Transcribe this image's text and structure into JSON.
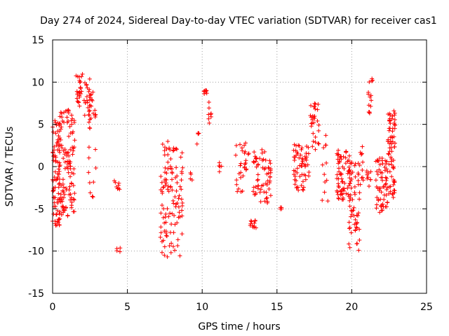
{
  "chart_data": {
    "type": "scatter",
    "title": "Day 274 of 2024, Sidereal Day-to-day VTEC variation (SDTVAR) for receiver cas1",
    "xlabel": "GPS time / hours",
    "ylabel": "SDTVAR / TECUs",
    "xlim": [
      0,
      25
    ],
    "ylim": [
      -15,
      15
    ],
    "xticks": [
      "0",
      "5",
      "10",
      "15",
      "20",
      "25"
    ],
    "yticks": [
      "15",
      "10",
      "5",
      "0",
      "-5",
      "-10",
      "-15"
    ],
    "grid": true,
    "marker": "plus",
    "color": "#ff0000",
    "series": [
      {
        "name": "SDTVAR",
        "clusters": [
          {
            "x": [
              0.0,
              0.5
            ],
            "y": [
              -7,
              6
            ],
            "n": 90
          },
          {
            "x": [
              0.5,
              1.5
            ],
            "y": [
              -6,
              7
            ],
            "n": 110
          },
          {
            "x": [
              1.5,
              2.0
            ],
            "y": [
              7,
              11
            ],
            "n": 25
          },
          {
            "x": [
              2.1,
              2.5
            ],
            "y": [
              6,
              10.5
            ],
            "n": 20
          },
          {
            "x": [
              2.4,
              2.9
            ],
            "y": [
              -4,
              9
            ],
            "n": 30
          },
          {
            "x": [
              4.1,
              4.5
            ],
            "y": [
              -3,
              -1.5
            ],
            "n": 8
          },
          {
            "x": [
              4.2,
              4.6
            ],
            "y": [
              -10.6,
              -9.6
            ],
            "n": 4
          },
          {
            "x": [
              7.2,
              8.0
            ],
            "y": [
              -10.8,
              3
            ],
            "n": 70
          },
          {
            "x": [
              8.0,
              8.7
            ],
            "y": [
              -10.6,
              2.5
            ],
            "n": 45
          },
          {
            "x": [
              9.2,
              9.4
            ],
            "y": [
              -2.5,
              -0.5
            ],
            "n": 4
          },
          {
            "x": [
              9.6,
              9.8
            ],
            "y": [
              2,
              4
            ],
            "n": 4
          },
          {
            "x": [
              10.1,
              10.4
            ],
            "y": [
              8.5,
              9.1
            ],
            "n": 8
          },
          {
            "x": [
              10.4,
              10.6
            ],
            "y": [
              5,
              8
            ],
            "n": 8
          },
          {
            "x": [
              11.0,
              11.3
            ],
            "y": [
              -0.8,
              0.6
            ],
            "n": 5
          },
          {
            "x": [
              12.2,
              13.2
            ],
            "y": [
              -3,
              3.2
            ],
            "n": 30
          },
          {
            "x": [
              13.2,
              13.6
            ],
            "y": [
              -7.3,
              -6.2
            ],
            "n": 12
          },
          {
            "x": [
              13.4,
              14.6
            ],
            "y": [
              -4.5,
              2
            ],
            "n": 65
          },
          {
            "x": [
              15.2,
              15.4
            ],
            "y": [
              -5.3,
              -4.8
            ],
            "n": 4
          },
          {
            "x": [
              16.1,
              17.2
            ],
            "y": [
              -2.8,
              2.8
            ],
            "n": 60
          },
          {
            "x": [
              17.2,
              17.8
            ],
            "y": [
              2,
              7.5
            ],
            "n": 30
          },
          {
            "x": [
              18.0,
              18.4
            ],
            "y": [
              -4.2,
              4
            ],
            "n": 12
          },
          {
            "x": [
              19.0,
              20.0
            ],
            "y": [
              -4,
              2
            ],
            "n": 70
          },
          {
            "x": [
              19.8,
              20.6
            ],
            "y": [
              -10,
              0.5
            ],
            "n": 55
          },
          {
            "x": [
              20.4,
              20.8
            ],
            "y": [
              -2,
              2.5
            ],
            "n": 12
          },
          {
            "x": [
              21.0,
              21.4
            ],
            "y": [
              -3,
              -0.4
            ],
            "n": 10
          },
          {
            "x": [
              21.1,
              21.4
            ],
            "y": [
              6,
              10.5
            ],
            "n": 15
          },
          {
            "x": [
              21.6,
              22.4
            ],
            "y": [
              -5.5,
              1
            ],
            "n": 60
          },
          {
            "x": [
              22.4,
              22.9
            ],
            "y": [
              -4,
              7
            ],
            "n": 70
          }
        ]
      }
    ]
  }
}
